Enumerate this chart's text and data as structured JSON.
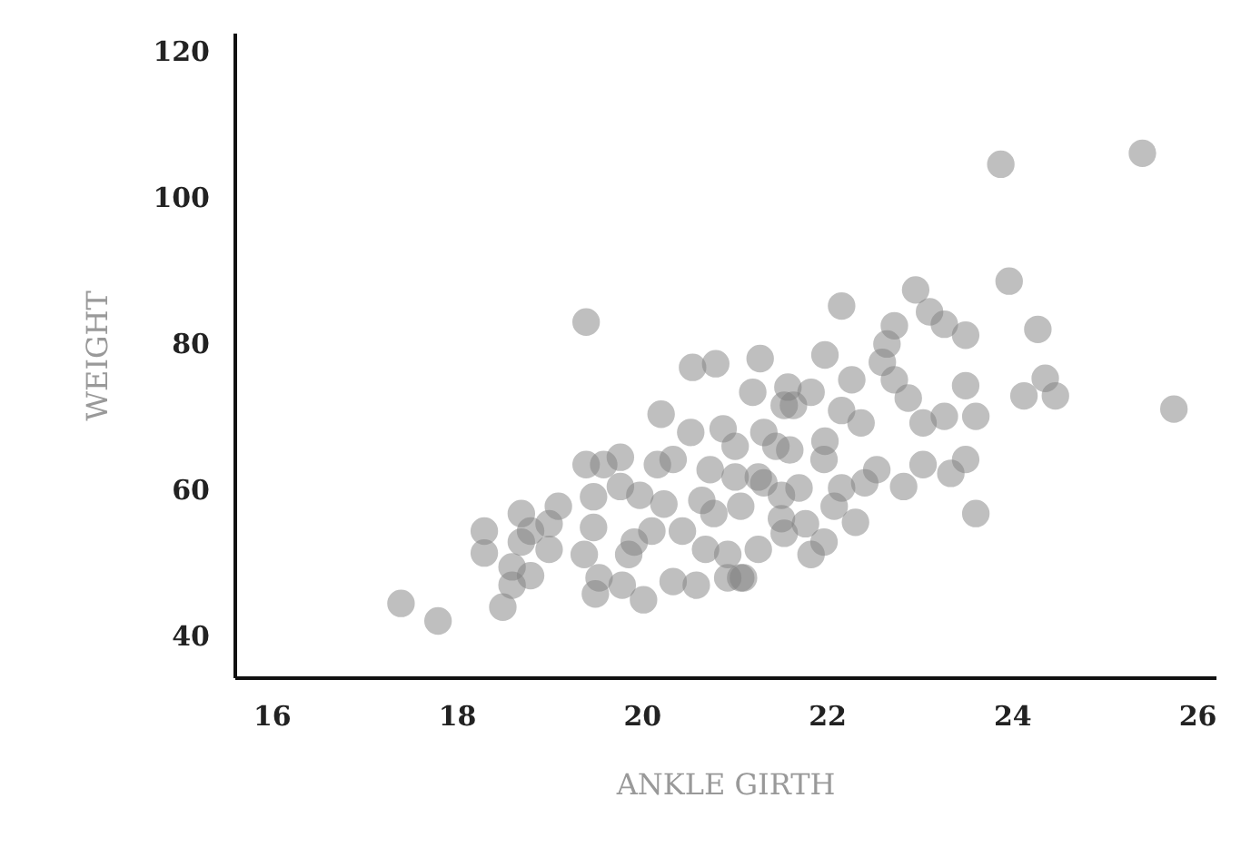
{
  "chart_data": {
    "type": "scatter",
    "xlabel": "ANKLE GIRTH",
    "ylabel": "WEIGHT",
    "xlim": [
      15.6,
      26.2
    ],
    "ylim": [
      34.3,
      122.5
    ],
    "xticks": [
      16,
      18,
      20,
      22,
      24,
      26
    ],
    "yticks": [
      40,
      60,
      80,
      100,
      120
    ],
    "grid": false,
    "legend": false,
    "marker": "circle",
    "series": [
      {
        "color": "#808080",
        "x": [
          17.4,
          17.8,
          19.4,
          18.3,
          18.3,
          18.5,
          18.7,
          18.7,
          18.6,
          18.8,
          19.0,
          19.1,
          19.0,
          18.8,
          18.6,
          19.4,
          19.59,
          19.77,
          19.48,
          19.48,
          19.38,
          19.54,
          19.5,
          19.86,
          19.92,
          19.79,
          20.02,
          20.11,
          20.17,
          20.34,
          20.24,
          20.34,
          20.59,
          20.53,
          20.88,
          20.21,
          20.55,
          20.8,
          21.28,
          21.2,
          21.01,
          20.74,
          20.65,
          20.78,
          20.44,
          20.93,
          20.93,
          21.1,
          21.26,
          21.26,
          21.45,
          21.51,
          21.54,
          20.69,
          19.98,
          19.77,
          23.88,
          25.41,
          23.97,
          24.28,
          24.47,
          24.13,
          24.36,
          25.75,
          23.61,
          23.5,
          23.34,
          23.61,
          23.5,
          23.5,
          23.27,
          23.11,
          22.96,
          22.16,
          21.98,
          22.73,
          22.65,
          22.6,
          22.73,
          22.88,
          23.04,
          23.27,
          23.04,
          22.83,
          22.54,
          22.27,
          22.16,
          22.37,
          21.98,
          21.83,
          21.58,
          21.32,
          21.6,
          21.97,
          22.16,
          22.41,
          22.31,
          21.97,
          21.83,
          21.54,
          21.07,
          21.07,
          21.7,
          21.51,
          22.08,
          21.77,
          21.32,
          21.01,
          21.64
        ],
        "values": [
          44.4,
          42.0,
          82.9,
          54.3,
          51.3,
          43.9,
          56.7,
          52.8,
          49.4,
          48.2,
          55.3,
          57.7,
          51.8,
          54.3,
          46.9,
          63.4,
          63.4,
          64.4,
          59.0,
          54.8,
          51.1,
          47.9,
          45.7,
          51.1,
          52.8,
          46.9,
          44.9,
          54.3,
          63.4,
          64.1,
          58.0,
          47.4,
          46.9,
          67.8,
          68.3,
          70.3,
          76.7,
          77.2,
          77.9,
          73.3,
          65.9,
          62.7,
          58.5,
          56.7,
          54.3,
          51.1,
          47.9,
          47.9,
          51.8,
          61.7,
          65.9,
          56.0,
          71.5,
          51.8,
          59.2,
          60.4,
          104.5,
          106.0,
          88.5,
          81.9,
          72.8,
          72.8,
          75.2,
          71.0,
          56.7,
          64.1,
          62.2,
          70.0,
          74.2,
          81.1,
          82.6,
          84.3,
          87.3,
          85.1,
          78.4,
          82.4,
          79.9,
          77.4,
          75.0,
          72.5,
          69.1,
          70.0,
          63.4,
          60.4,
          62.7,
          75.0,
          70.8,
          69.1,
          66.6,
          73.3,
          74.0,
          67.8,
          65.4,
          64.1,
          60.2,
          60.9,
          55.5,
          52.8,
          51.1,
          54.0,
          47.9,
          57.7,
          60.2,
          59.2,
          57.7,
          55.3,
          60.9,
          61.7,
          71.5
        ]
      }
    ]
  }
}
